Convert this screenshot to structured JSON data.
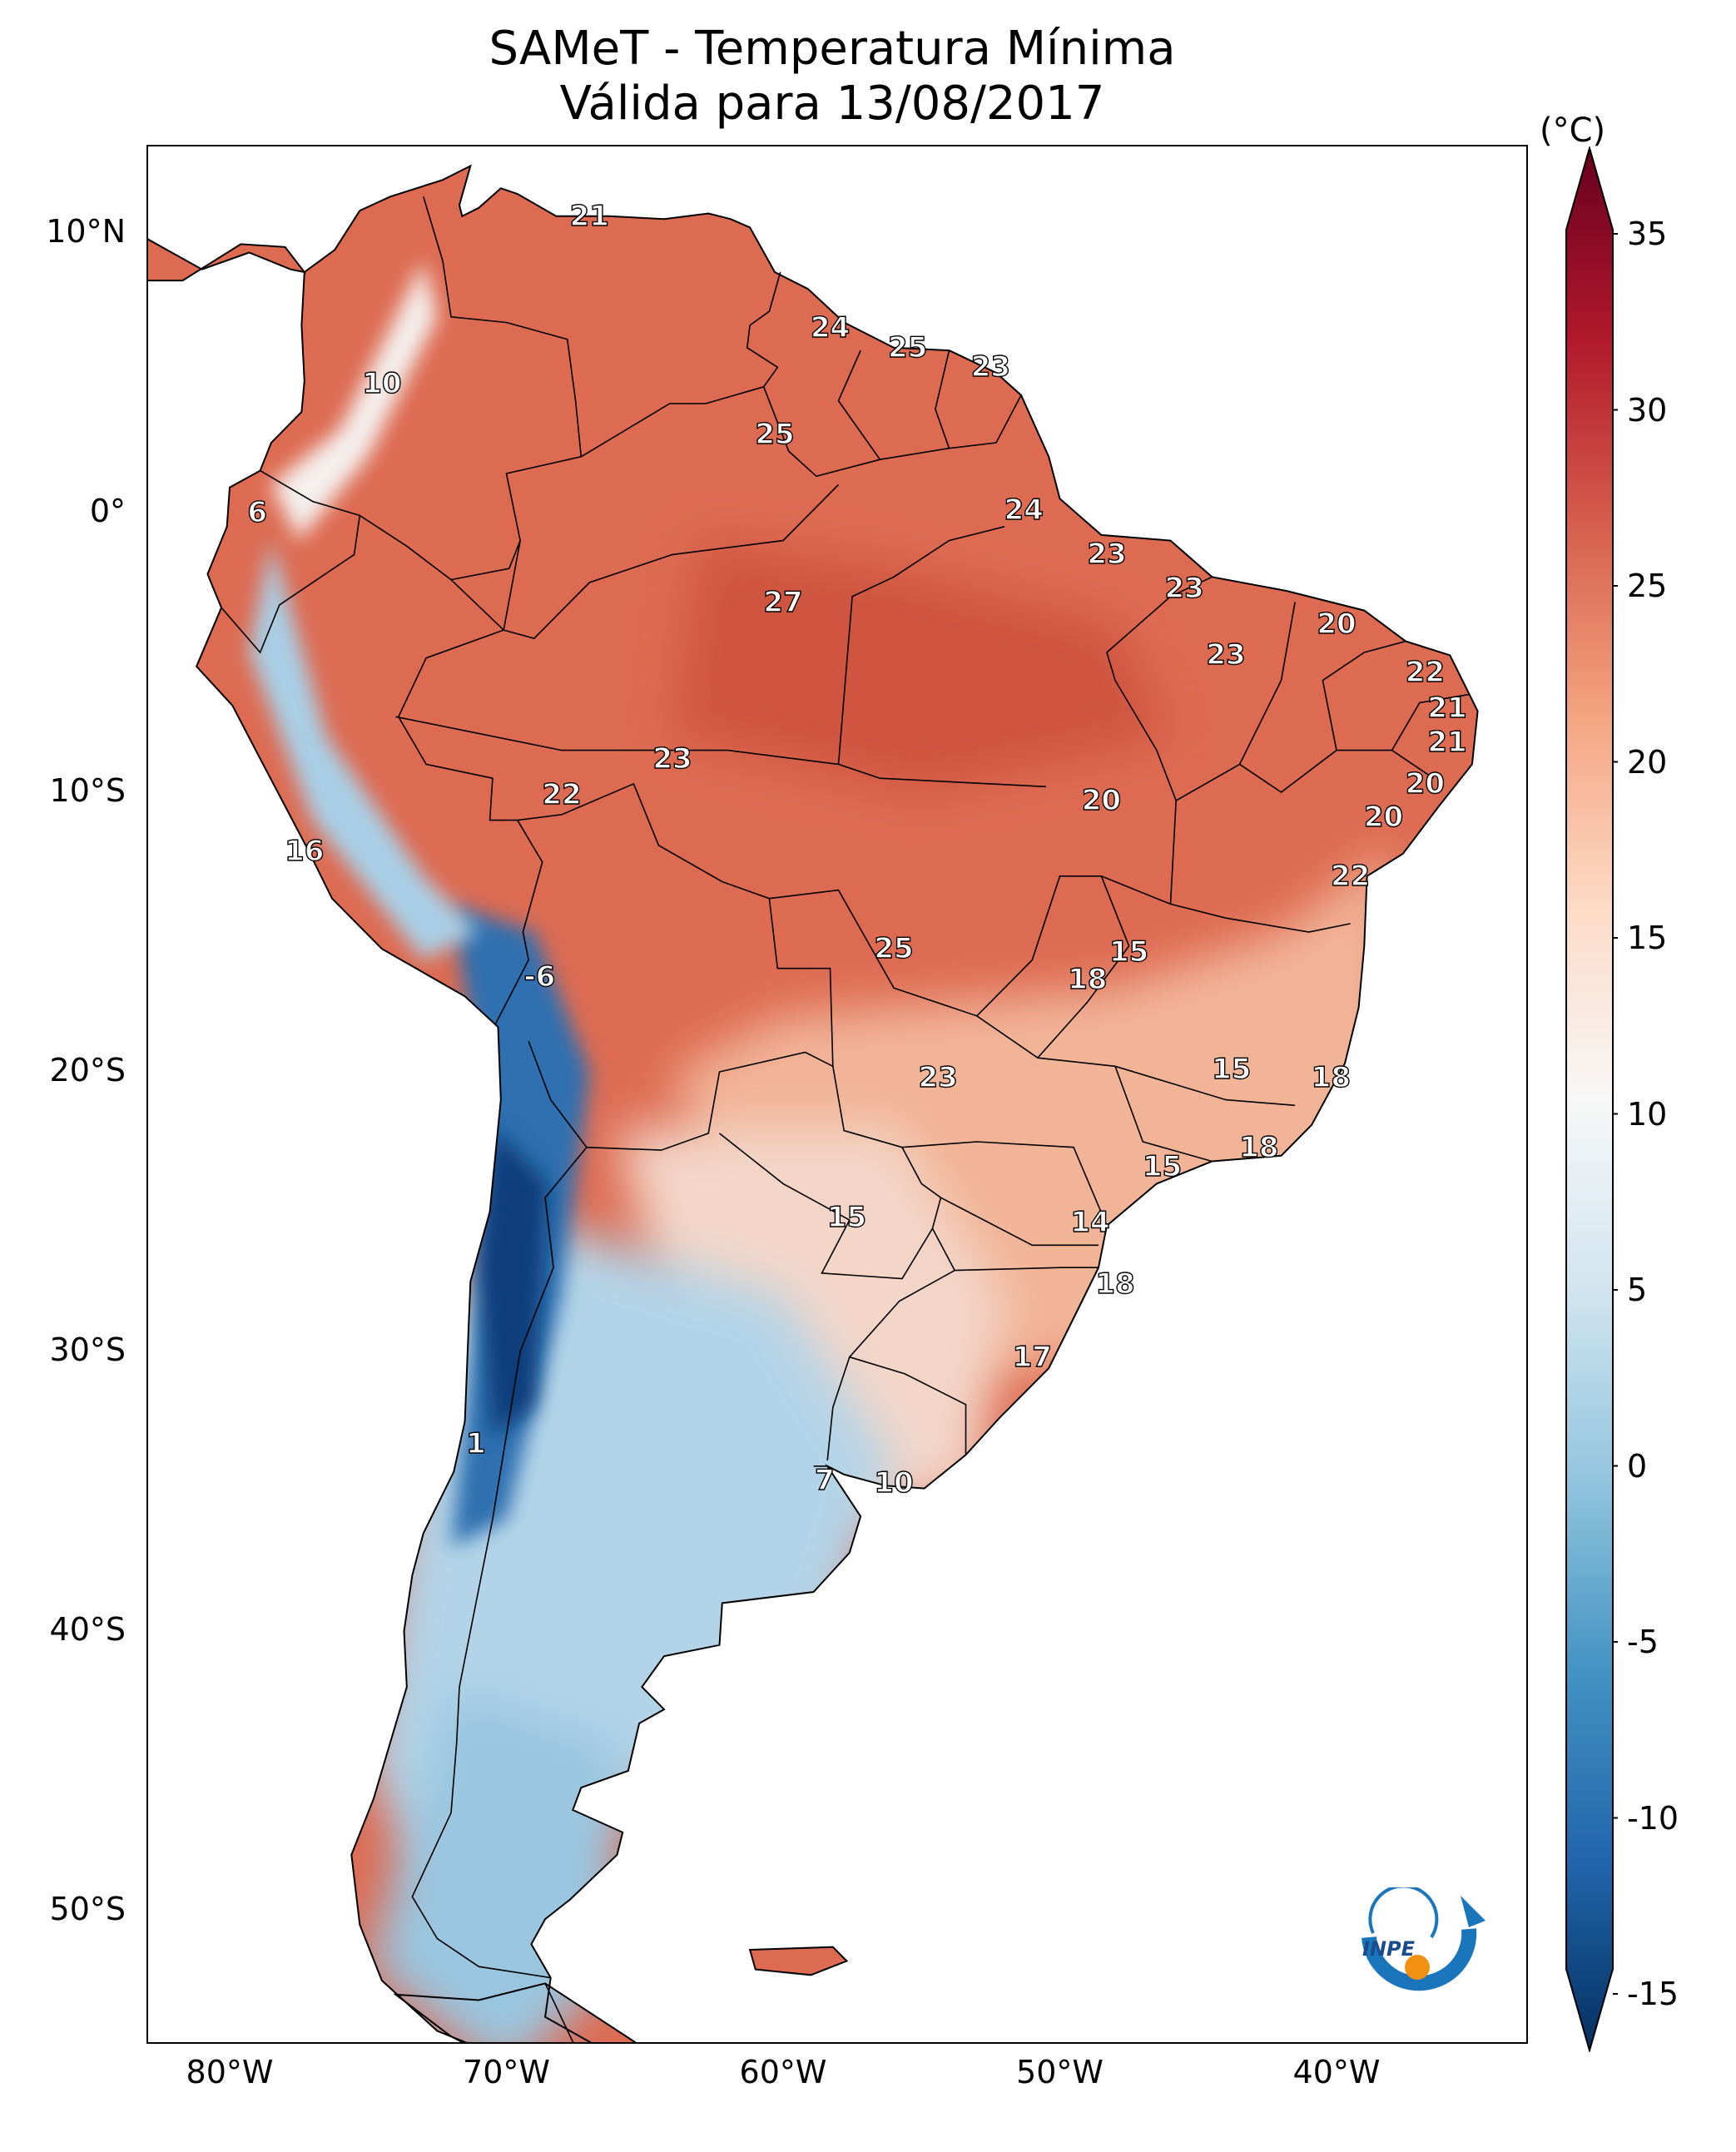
{
  "title": {
    "line1": "SAMeT - Temperatura Mínima",
    "line2": "Válida para 13/08/2017"
  },
  "axes": {
    "lat_labels": [
      {
        "label": "10°N",
        "value": 10
      },
      {
        "label": "0°",
        "value": 0
      },
      {
        "label": "10°S",
        "value": -10
      },
      {
        "label": "20°S",
        "value": -20
      },
      {
        "label": "30°S",
        "value": -30
      },
      {
        "label": "40°S",
        "value": -40
      },
      {
        "label": "50°S",
        "value": -50
      }
    ],
    "lon_labels": [
      {
        "label": "80°W",
        "value": -80
      },
      {
        "label": "70°W",
        "value": -70
      },
      {
        "label": "60°W",
        "value": -60
      },
      {
        "label": "50°W",
        "value": -50
      },
      {
        "label": "40°W",
        "value": -40
      }
    ],
    "lon_range": [
      -83,
      -33
    ],
    "lat_range": [
      -56,
      13
    ]
  },
  "colorbar": {
    "unit": "(°C)",
    "range": [
      -15,
      35
    ],
    "ticks": [
      "35",
      "30",
      "25",
      "20",
      "15",
      "10",
      "5",
      "0",
      "-5",
      "-10",
      "-15"
    ],
    "colors": [
      "#053061",
      "#2166ac",
      "#4393c3",
      "#92c5de",
      "#d1e5f0",
      "#f7f7f7",
      "#fddbc7",
      "#f4a582",
      "#d6604d",
      "#b2182b",
      "#67001f"
    ]
  },
  "station_values": [
    {
      "text": "21",
      "lon": -67,
      "lat": 10.6
    },
    {
      "text": "10",
      "lon": -74.5,
      "lat": 4.6
    },
    {
      "text": "6",
      "lon": -79,
      "lat": 0
    },
    {
      "text": "24",
      "lon": -58.3,
      "lat": 6.6
    },
    {
      "text": "25",
      "lon": -55.5,
      "lat": 5.9
    },
    {
      "text": "23",
      "lon": -52.5,
      "lat": 5.2
    },
    {
      "text": "25",
      "lon": -60.3,
      "lat": 2.8
    },
    {
      "text": "24",
      "lon": -51.3,
      "lat": 0.1
    },
    {
      "text": "23",
      "lon": -48.3,
      "lat": -1.5
    },
    {
      "text": "23",
      "lon": -45.5,
      "lat": -2.7
    },
    {
      "text": "20",
      "lon": -40,
      "lat": -4
    },
    {
      "text": "27",
      "lon": -60,
      "lat": -3.2
    },
    {
      "text": "23",
      "lon": -44,
      "lat": -5.1
    },
    {
      "text": "22",
      "lon": -36.8,
      "lat": -5.7
    },
    {
      "text": "21",
      "lon": -36,
      "lat": -7
    },
    {
      "text": "21",
      "lon": -36,
      "lat": -8.2
    },
    {
      "text": "20",
      "lon": -36.8,
      "lat": -9.7
    },
    {
      "text": "20",
      "lon": -38.3,
      "lat": -10.9
    },
    {
      "text": "23",
      "lon": -64,
      "lat": -8.8
    },
    {
      "text": "22",
      "lon": -68,
      "lat": -10.1
    },
    {
      "text": "20",
      "lon": -48.5,
      "lat": -10.3
    },
    {
      "text": "22",
      "lon": -39.5,
      "lat": -13
    },
    {
      "text": "16",
      "lon": -77.3,
      "lat": -12.1
    },
    {
      "text": "25",
      "lon": -56,
      "lat": -15.6
    },
    {
      "text": "15",
      "lon": -47.5,
      "lat": -15.7
    },
    {
      "text": "18",
      "lon": -49,
      "lat": -16.7
    },
    {
      "text": "-6",
      "lon": -68.8,
      "lat": -16.6
    },
    {
      "text": "15",
      "lon": -43.8,
      "lat": -19.9
    },
    {
      "text": "18",
      "lon": -40.2,
      "lat": -20.2
    },
    {
      "text": "23",
      "lon": -54.4,
      "lat": -20.2
    },
    {
      "text": "18",
      "lon": -42.8,
      "lat": -22.7
    },
    {
      "text": "15",
      "lon": -46.3,
      "lat": -23.4
    },
    {
      "text": "15",
      "lon": -57.7,
      "lat": -25.2
    },
    {
      "text": "14",
      "lon": -48.9,
      "lat": -25.4
    },
    {
      "text": "18",
      "lon": -48,
      "lat": -27.6
    },
    {
      "text": "17",
      "lon": -51,
      "lat": -30.2
    },
    {
      "text": "1",
      "lon": -71.1,
      "lat": -33.3
    },
    {
      "text": "7",
      "lon": -58.5,
      "lat": -34.6
    },
    {
      "text": "10",
      "lon": -56,
      "lat": -34.7
    }
  ],
  "logo": {
    "text": "INPE"
  }
}
